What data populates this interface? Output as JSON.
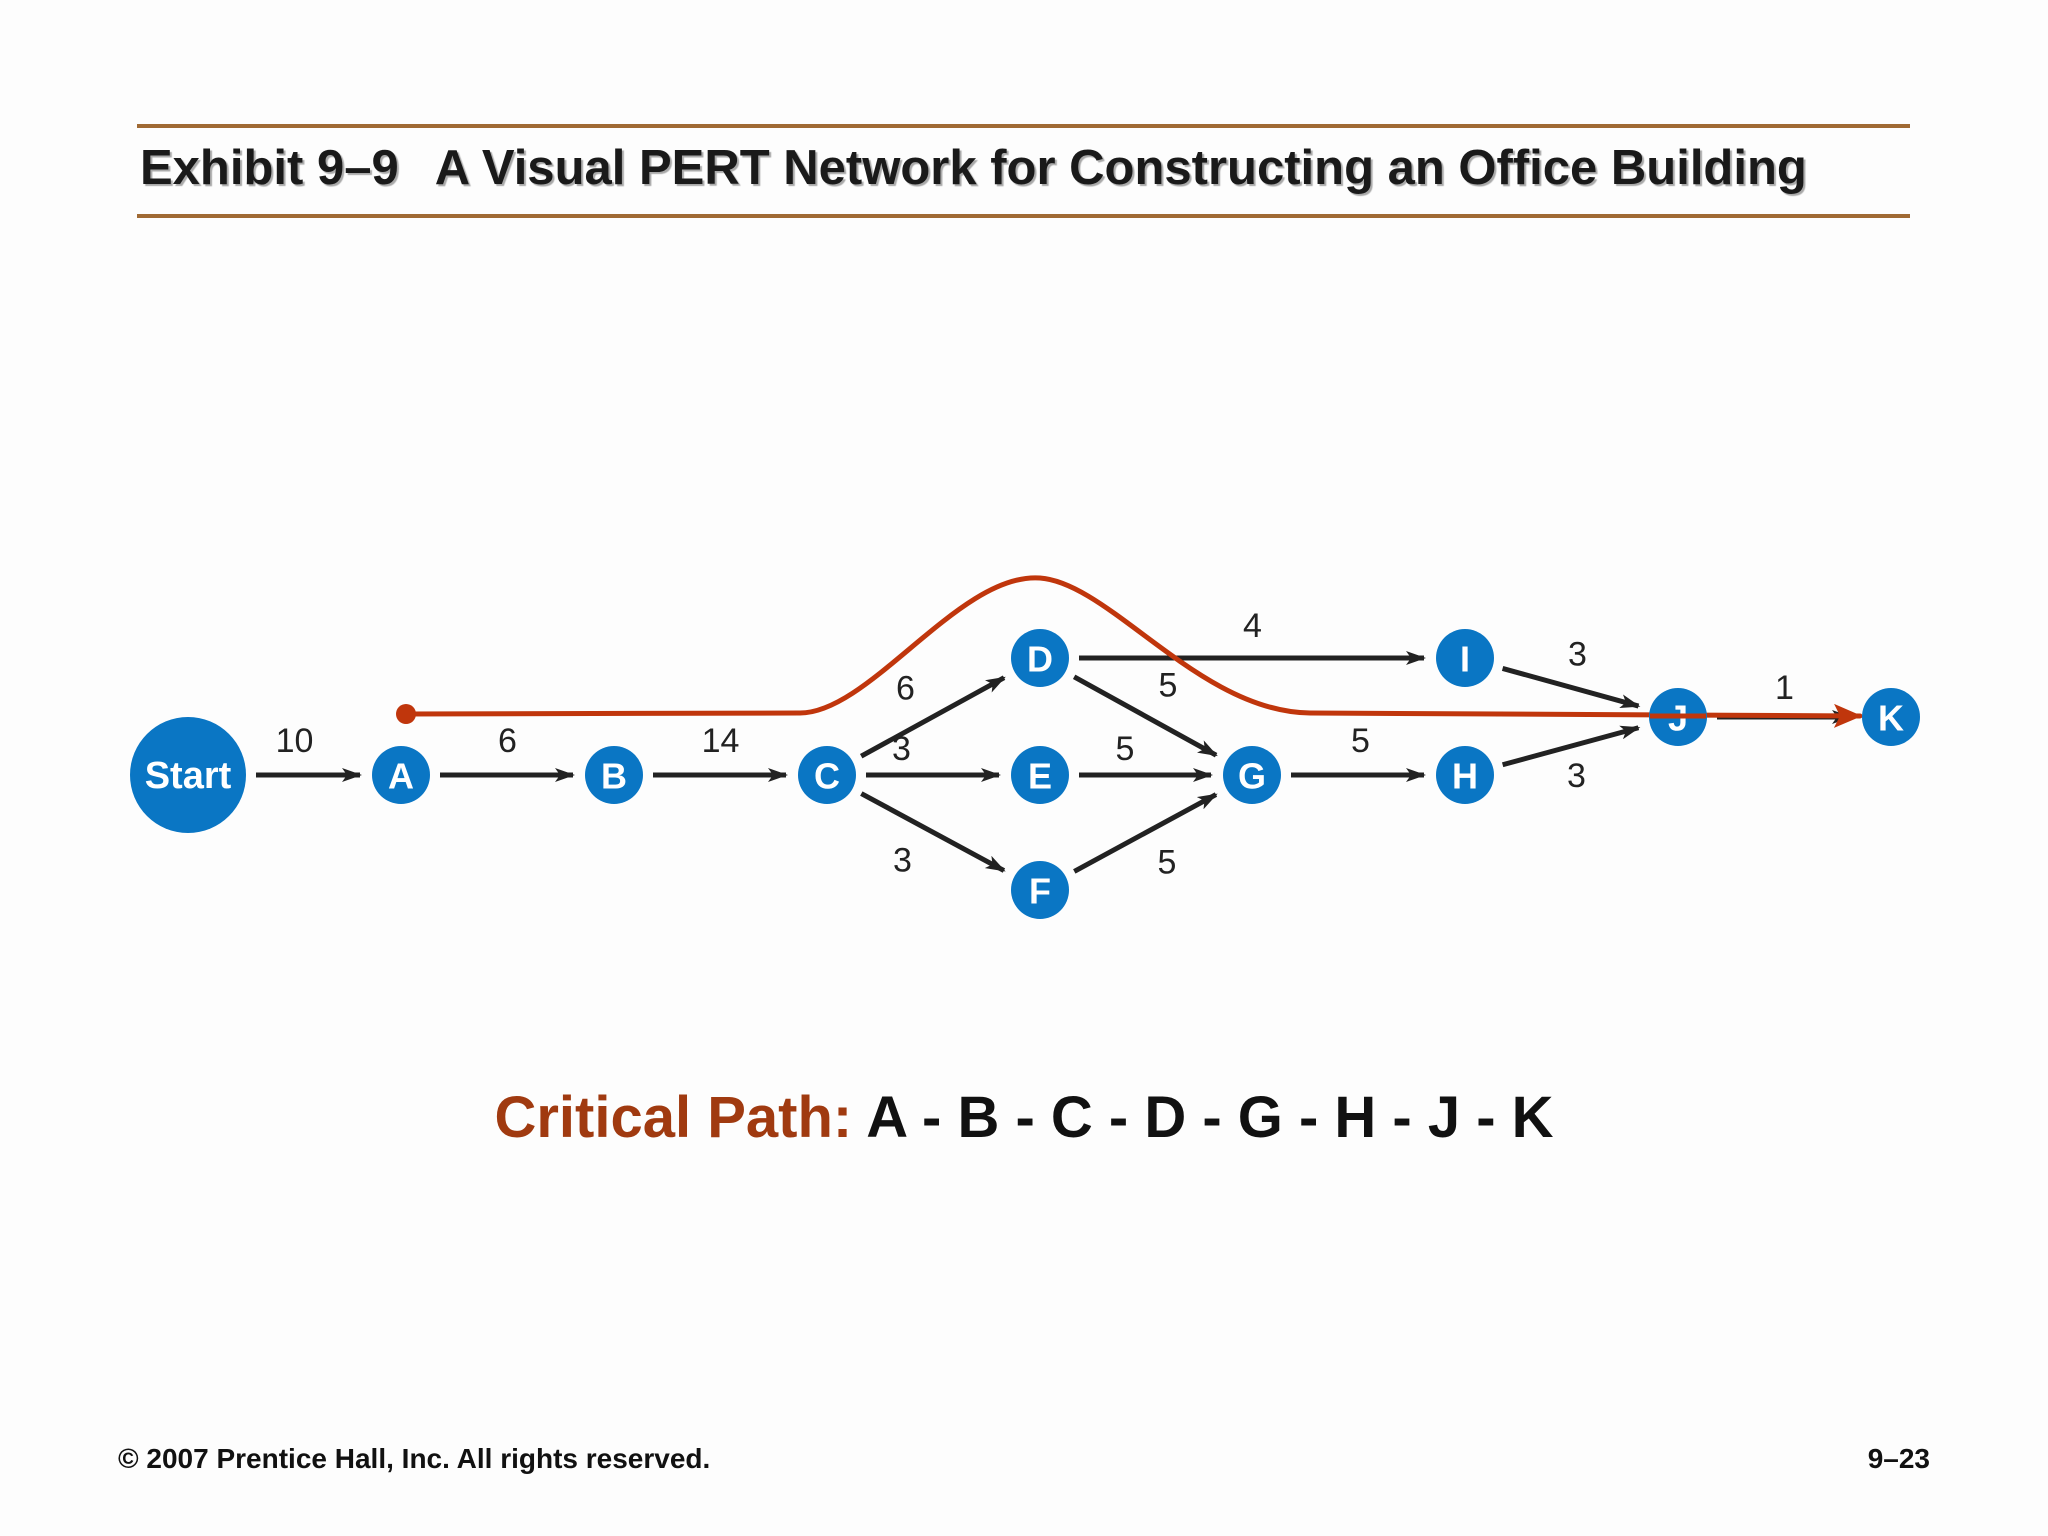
{
  "title": {
    "exhibit": "Exhibit 9–9",
    "text": "A Visual PERT Network for Constructing an Office Building"
  },
  "colors": {
    "node_fill": "#0a76c4",
    "edge": "#222222",
    "critical_path": "#c0360c",
    "rule": "#a06a34",
    "critical_label": "#a03a10"
  },
  "nodes": [
    {
      "id": "Start",
      "label": "Start"
    },
    {
      "id": "A",
      "label": "A"
    },
    {
      "id": "B",
      "label": "B"
    },
    {
      "id": "C",
      "label": "C"
    },
    {
      "id": "D",
      "label": "D"
    },
    {
      "id": "E",
      "label": "E"
    },
    {
      "id": "F",
      "label": "F"
    },
    {
      "id": "G",
      "label": "G"
    },
    {
      "id": "I",
      "label": "I"
    },
    {
      "id": "H",
      "label": "H"
    },
    {
      "id": "J",
      "label": "J"
    },
    {
      "id": "K",
      "label": "K"
    }
  ],
  "edges": [
    {
      "from": "Start",
      "to": "A",
      "weight": "10"
    },
    {
      "from": "A",
      "to": "B",
      "weight": "6"
    },
    {
      "from": "B",
      "to": "C",
      "weight": "14"
    },
    {
      "from": "C",
      "to": "D",
      "weight": "6"
    },
    {
      "from": "C",
      "to": "E",
      "weight": "3"
    },
    {
      "from": "C",
      "to": "F",
      "weight": "3"
    },
    {
      "from": "D",
      "to": "I",
      "weight": "4"
    },
    {
      "from": "D",
      "to": "G",
      "weight": "5"
    },
    {
      "from": "E",
      "to": "G",
      "weight": "5"
    },
    {
      "from": "F",
      "to": "G",
      "weight": "5"
    },
    {
      "from": "G",
      "to": "H",
      "weight": "5"
    },
    {
      "from": "I",
      "to": "J",
      "weight": "3"
    },
    {
      "from": "H",
      "to": "J",
      "weight": "3"
    },
    {
      "from": "J",
      "to": "K",
      "weight": "1"
    }
  ],
  "critical_path": {
    "label": "Critical Path:",
    "sequence": "A - B - C - D - G - H - J - K"
  },
  "footer": {
    "copyright": "© 2007 Prentice Hall, Inc. All rights reserved.",
    "page": "9–23"
  }
}
